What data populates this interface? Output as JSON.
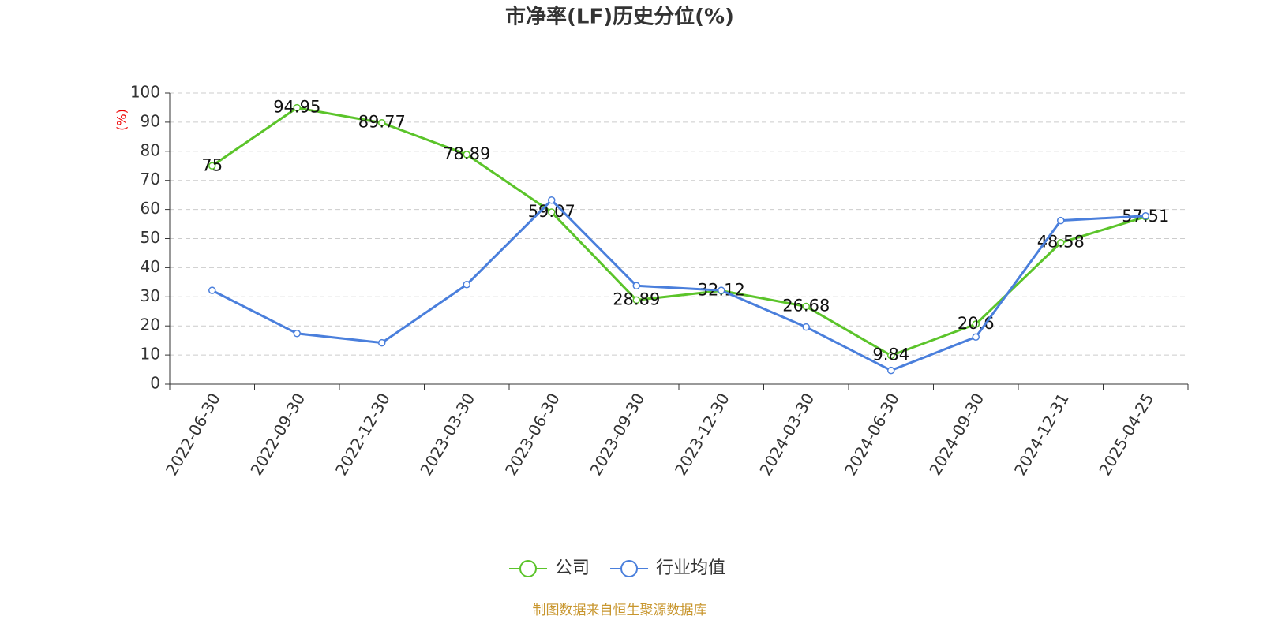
{
  "chart_data": {
    "type": "line",
    "title": "市净率(LF)历史分位(%)",
    "y_label": "(%)",
    "categories": [
      "2022-06-30",
      "2022-09-30",
      "2022-12-30",
      "2023-03-30",
      "2023-06-30",
      "2023-09-30",
      "2023-12-30",
      "2024-03-30",
      "2024-06-30",
      "2024-09-30",
      "2024-12-31",
      "2025-04-25"
    ],
    "series": [
      {
        "name": "公司",
        "color": "#5bc42a",
        "values": [
          75,
          94.95,
          89.77,
          78.89,
          59.07,
          28.89,
          32.12,
          26.68,
          9.84,
          20.6,
          48.58,
          57.51
        ],
        "show_labels": true
      },
      {
        "name": "行业均值",
        "color": "#4a7fdc",
        "values": [
          32.2,
          17.4,
          14.2,
          34.2,
          63.2,
          33.8,
          32.2,
          19.6,
          4.7,
          16.2,
          56.2,
          57.8
        ],
        "show_labels": false
      }
    ],
    "ylim": [
      0,
      100
    ],
    "yticks": [
      0,
      10,
      20,
      30,
      40,
      50,
      60,
      70,
      80,
      90,
      100
    ],
    "grid": true,
    "source": "制图数据来自恒生聚源数据库"
  }
}
